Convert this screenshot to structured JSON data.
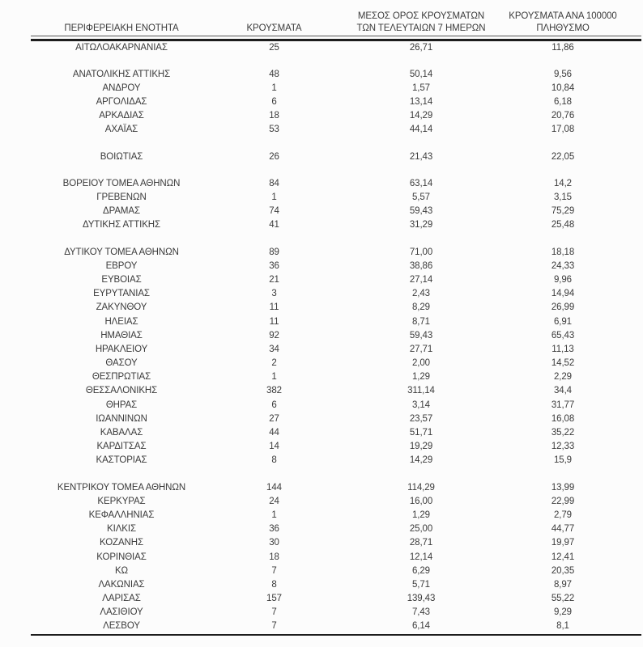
{
  "page": {
    "background_color": "#fcfcfc",
    "text_color": "#3b3b3b",
    "rule_color": "#1d1d1d"
  },
  "table": {
    "columns": [
      "ΠΕΡΙΦΕΡΕΙΑΚΗ ΕΝΟΤΗΤΑ",
      "ΚΡΟΥΣΜΑΤΑ",
      "ΜΕΣΟΣ ΟΡΟΣ ΚΡΟΥΣΜΑΤΩΝ ΤΩΝ ΤΕΛΕΥΤΑΙΩΝ 7 ΗΜΕΡΩΝ",
      "ΚΡΟΥΣΜΑΤΑ ΑΝΑ 100000 ΠΛΗΘΥΣΜΟ"
    ],
    "groups": [
      {
        "rows": [
          [
            "ΑΙΤΩΛΟΑΚΑΡΝΑΝΙΑΣ",
            "25",
            "26,71",
            "11,86"
          ]
        ]
      },
      {
        "rows": [
          [
            "ΑΝΑΤΟΛΙΚΗΣ ΑΤΤΙΚΗΣ",
            "48",
            "50,14",
            "9,56"
          ],
          [
            "ΑΝΔΡΟΥ",
            "1",
            "1,57",
            "10,84"
          ],
          [
            "ΑΡΓΟΛΙΔΑΣ",
            "6",
            "13,14",
            "6,18"
          ],
          [
            "ΑΡΚΑΔΙΑΣ",
            "18",
            "14,29",
            "20,76"
          ],
          [
            "ΑΧΑΪΑΣ",
            "53",
            "44,14",
            "17,08"
          ]
        ]
      },
      {
        "rows": [
          [
            "ΒΟΙΩΤΙΑΣ",
            "26",
            "21,43",
            "22,05"
          ]
        ]
      },
      {
        "rows": [
          [
            "ΒΟΡΕΙΟΥ ΤΟΜΕΑ ΑΘΗΝΩΝ",
            "84",
            "63,14",
            "14,2"
          ],
          [
            "ΓΡΕΒΕΝΩΝ",
            "1",
            "5,57",
            "3,15"
          ],
          [
            "ΔΡΑΜΑΣ",
            "74",
            "59,43",
            "75,29"
          ],
          [
            "ΔΥΤΙΚΗΣ ΑΤΤΙΚΗΣ",
            "41",
            "31,29",
            "25,48"
          ]
        ]
      },
      {
        "rows": [
          [
            "ΔΥΤΙΚΟΥ ΤΟΜΕΑ ΑΘΗΝΩΝ",
            "89",
            "71,00",
            "18,18"
          ],
          [
            "ΕΒΡΟΥ",
            "36",
            "38,86",
            "24,33"
          ],
          [
            "ΕΥΒΟΙΑΣ",
            "21",
            "27,14",
            "9,96"
          ],
          [
            "ΕΥΡΥΤΑΝΙΑΣ",
            "3",
            "2,43",
            "14,94"
          ],
          [
            "ΖΑΚΥΝΘΟΥ",
            "11",
            "8,29",
            "26,99"
          ],
          [
            "ΗΛΕΙΑΣ",
            "11",
            "8,71",
            "6,91"
          ],
          [
            "ΗΜΑΘΙΑΣ",
            "92",
            "59,43",
            "65,43"
          ],
          [
            "ΗΡΑΚΛΕΙΟΥ",
            "34",
            "27,71",
            "11,13"
          ],
          [
            "ΘΑΣΟΥ",
            "2",
            "2,00",
            "14,52"
          ],
          [
            "ΘΕΣΠΡΩΤΙΑΣ",
            "1",
            "1,29",
            "2,29"
          ],
          [
            "ΘΕΣΣΑΛΟΝΙΚΗΣ",
            "382",
            "311,14",
            "34,4"
          ],
          [
            "ΘΗΡΑΣ",
            "6",
            "3,14",
            "31,77"
          ],
          [
            "ΙΩΑΝΝΙΝΩΝ",
            "27",
            "23,57",
            "16,08"
          ],
          [
            "ΚΑΒΑΛΑΣ",
            "44",
            "51,71",
            "35,22"
          ],
          [
            "ΚΑΡΔΙΤΣΑΣ",
            "14",
            "19,29",
            "12,33"
          ],
          [
            "ΚΑΣΤΟΡΙΑΣ",
            "8",
            "14,29",
            "15,9"
          ]
        ]
      },
      {
        "rows": [
          [
            "ΚΕΝΤΡΙΚΟΥ ΤΟΜΕΑ ΑΘΗΝΩΝ",
            "144",
            "114,29",
            "13,99"
          ],
          [
            "ΚΕΡΚΥΡΑΣ",
            "24",
            "16,00",
            "22,99"
          ],
          [
            "ΚΕΦΑΛΛΗΝΙΑΣ",
            "1",
            "1,29",
            "2,79"
          ],
          [
            "ΚΙΛΚΙΣ",
            "36",
            "25,00",
            "44,77"
          ],
          [
            "ΚΟΖΑΝΗΣ",
            "30",
            "28,71",
            "19,97"
          ],
          [
            "ΚΟΡΙΝΘΙΑΣ",
            "18",
            "12,14",
            "12,41"
          ],
          [
            "ΚΩ",
            "7",
            "6,29",
            "20,35"
          ],
          [
            "ΛΑΚΩΝΙΑΣ",
            "8",
            "5,71",
            "8,97"
          ],
          [
            "ΛΑΡΙΣΑΣ",
            "157",
            "139,43",
            "55,22"
          ],
          [
            "ΛΑΣΙΘΙΟΥ",
            "7",
            "7,43",
            "9,29"
          ],
          [
            "ΛΕΣΒΟΥ",
            "7",
            "6,14",
            "8,1"
          ]
        ]
      }
    ]
  }
}
